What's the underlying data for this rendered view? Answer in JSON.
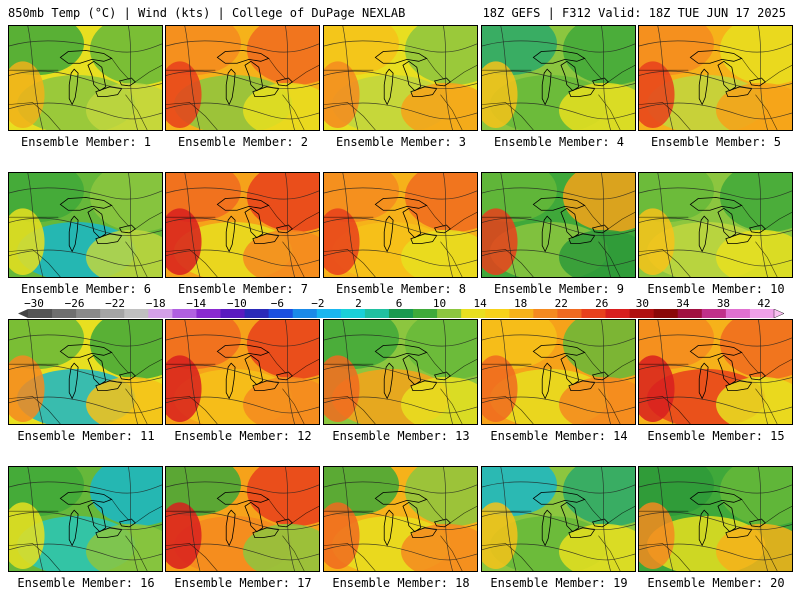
{
  "header": {
    "title": "850mb Temp (°C) | Wind (kts) | College of DuPage NEXLAB",
    "valid": "18Z GEFS | F312 Valid: 18Z TUE JUN 17 2025"
  },
  "members": [
    {
      "label": "Ensemble Member: 1",
      "base": "#e8df20",
      "colors": [
        "#3fa83a",
        "#66b83a",
        "#8cc63f",
        "#c0d640"
      ],
      "warm": "#f0b21a"
    },
    {
      "label": "Ensemble Member: 2",
      "base": "#f6b21a",
      "colors": [
        "#f48a20",
        "#f06a20",
        "#8cc63f",
        "#e8df20"
      ],
      "warm": "#e8401c"
    },
    {
      "label": "Ensemble Member: 3",
      "base": "#e8df20",
      "colors": [
        "#f6c21a",
        "#8cc63f",
        "#c0d640",
        "#f6a21a"
      ],
      "warm": "#f48a20"
    },
    {
      "label": "Ensemble Member: 4",
      "base": "#8cc63f",
      "colors": [
        "#2aa86a",
        "#3fa83a",
        "#66b83a",
        "#e8df20"
      ],
      "warm": "#f6c21a"
    },
    {
      "label": "Ensemble Member: 5",
      "base": "#f6b21a",
      "colors": [
        "#f48a20",
        "#e8df20",
        "#c0d640",
        "#f6a21a"
      ],
      "warm": "#e8401c"
    },
    {
      "label": "Ensemble Member: 6",
      "base": "#66b83a",
      "colors": [
        "#3fa83a",
        "#8cc63f",
        "#1ab6c8",
        "#c0d640"
      ],
      "warm": "#e8df20"
    },
    {
      "label": "Ensemble Member: 7",
      "base": "#f6a21a",
      "colors": [
        "#f06a20",
        "#e8401c",
        "#e8df20",
        "#f48a20"
      ],
      "warm": "#d81e1e"
    },
    {
      "label": "Ensemble Member: 8",
      "base": "#f6b21a",
      "colors": [
        "#f48a20",
        "#f06a20",
        "#f6c21a",
        "#e8df20"
      ],
      "warm": "#e8401c"
    },
    {
      "label": "Ensemble Member: 9",
      "base": "#3fa83a",
      "colors": [
        "#66b83a",
        "#f6a21a",
        "#8cc63f",
        "#2e9a3a"
      ],
      "warm": "#e8401c"
    },
    {
      "label": "Ensemble Member: 10",
      "base": "#8cc63f",
      "colors": [
        "#66b83a",
        "#3fa83a",
        "#c0d640",
        "#e8df20"
      ],
      "warm": "#f6c21a"
    },
    {
      "label": "Ensemble Member: 11",
      "base": "#e8df20",
      "colors": [
        "#66b83a",
        "#3fa83a",
        "#1ab6c8",
        "#f6c21a"
      ],
      "warm": "#f48a20"
    },
    {
      "label": "Ensemble Member: 12",
      "base": "#f6a21a",
      "colors": [
        "#f06a20",
        "#e8401c",
        "#f6c21a",
        "#f48a20"
      ],
      "warm": "#d81e1e"
    },
    {
      "label": "Ensemble Member: 13",
      "base": "#8cc63f",
      "colors": [
        "#3fa83a",
        "#66b83a",
        "#f6a21a",
        "#e8df20"
      ],
      "warm": "#f06a20"
    },
    {
      "label": "Ensemble Member: 14",
      "base": "#f6a21a",
      "colors": [
        "#f6c21a",
        "#66b83a",
        "#e8df20",
        "#f48a20"
      ],
      "warm": "#f06a20"
    },
    {
      "label": "Ensemble Member: 15",
      "base": "#f6b21a",
      "colors": [
        "#f48a20",
        "#f06a20",
        "#e8401c",
        "#e8df20"
      ],
      "warm": "#d81e1e"
    },
    {
      "label": "Ensemble Member: 16",
      "base": "#66b83a",
      "colors": [
        "#3fa83a",
        "#1ab6c8",
        "#2ac6b8",
        "#8cc63f"
      ],
      "warm": "#e8df20"
    },
    {
      "label": "Ensemble Member: 17",
      "base": "#f6a21a",
      "colors": [
        "#3fa83a",
        "#e8401c",
        "#f48a20",
        "#8cc63f"
      ],
      "warm": "#d81e1e"
    },
    {
      "label": "Ensemble Member: 18",
      "base": "#f6b21a",
      "colors": [
        "#3fa83a",
        "#8cc63f",
        "#e8df20",
        "#f48a20"
      ],
      "warm": "#f06a20"
    },
    {
      "label": "Ensemble Member: 19",
      "base": "#8cc63f",
      "colors": [
        "#1ab6c8",
        "#2aa86a",
        "#66b83a",
        "#e8df20"
      ],
      "warm": "#f6c21a"
    },
    {
      "label": "Ensemble Member: 20",
      "base": "#3fa83a",
      "colors": [
        "#2e9a3a",
        "#66b83a",
        "#e8df20",
        "#f6b21a"
      ],
      "warm": "#f48a20"
    }
  ],
  "colorbar": {
    "ticks": [
      "−30",
      "−26",
      "−22",
      "−18",
      "−14",
      "−10",
      "−6",
      "−2",
      "2",
      "6",
      "10",
      "14",
      "18",
      "22",
      "26",
      "30",
      "34",
      "38",
      "42"
    ],
    "colors": [
      "#555555",
      "#6f6f6f",
      "#8a8a8a",
      "#a5a5a5",
      "#c0c0c0",
      "#d4a0e8",
      "#b060e0",
      "#8a2ad0",
      "#5a1ac0",
      "#2a2ab8",
      "#1a50e0",
      "#1a8ae8",
      "#1ab6f0",
      "#1ad0d8",
      "#20c0a0",
      "#1a9a50",
      "#3faa3a",
      "#8cc63f",
      "#e8df20",
      "#f6d21a",
      "#f6b21a",
      "#f48a20",
      "#f06a20",
      "#e8401c",
      "#d81e1e",
      "#b01010",
      "#8a0808",
      "#a01040",
      "#c0308a",
      "#e070d0",
      "#f0a0e8"
    ]
  }
}
